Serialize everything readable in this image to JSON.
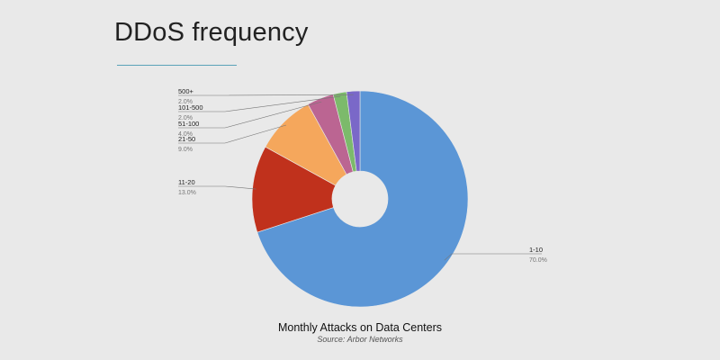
{
  "slide": {
    "title": "DDoS frequency"
  },
  "chart_data": {
    "type": "pie",
    "title": "Monthly Attacks on Data Centers",
    "subtitle": "Source: Arbor Networks",
    "donut": true,
    "start_angle_deg": 0,
    "direction": "clockwise",
    "slices": [
      {
        "label": "1-10",
        "value": 70.0,
        "pct_label": "70.0%",
        "color": "#5b96d6"
      },
      {
        "label": "11-20",
        "value": 13.0,
        "pct_label": "13.0%",
        "color": "#c0311c"
      },
      {
        "label": "21-50",
        "value": 9.0,
        "pct_label": "9.0%",
        "color": "#f5a75c"
      },
      {
        "label": "51-100",
        "value": 4.0,
        "pct_label": "4.0%",
        "color": "#bb6592"
      },
      {
        "label": "101-500",
        "value": 2.0,
        "pct_label": "2.0%",
        "color": "#7cba6b"
      },
      {
        "label": "500+",
        "value": 2.0,
        "pct_label": "2.0%",
        "color": "#7a68c8"
      }
    ]
  }
}
